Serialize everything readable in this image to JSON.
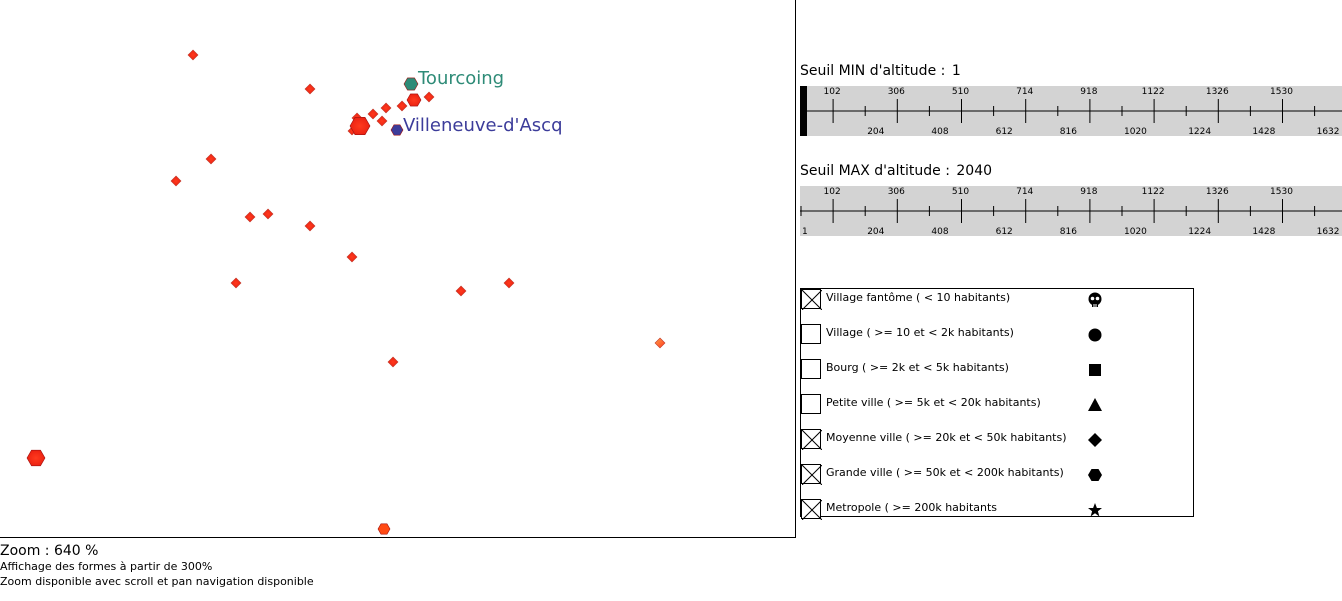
{
  "map": {
    "city_labels": [
      {
        "id": "tourcoing",
        "name": "Tourcoing",
        "color": "#2e8b77"
      },
      {
        "id": "villeneuve",
        "name": "Villeneuve-d'Ascq",
        "color": "#3c3c9a"
      }
    ],
    "marker_fill": "#ff2a14",
    "marker_stroke": "#b22222",
    "orange_marker_fill": "#ff6a2a"
  },
  "zoom": {
    "label": "Zoom : 640 %",
    "shapes_note": "Affichage des formes à partir de 300%",
    "navigation_note": "Zoom disponible avec scroll et pan navigation disponible"
  },
  "slider_min": {
    "label": "Seuil MIN d'altitude :",
    "value": "1",
    "top_ticks": [
      "102",
      "306",
      "510",
      "714",
      "918",
      "1122",
      "1326",
      "1530"
    ],
    "bottom_ticks": [
      "204",
      "408",
      "612",
      "816",
      "1020",
      "1224",
      "1428",
      "1632"
    ]
  },
  "slider_max": {
    "label": "Seuil MAX d'altitude :",
    "value": "2040",
    "top_ticks": [
      "102",
      "306",
      "510",
      "714",
      "918",
      "1122",
      "1326",
      "1530"
    ],
    "bottom_ticks": [
      "1",
      "204",
      "408",
      "612",
      "816",
      "1020",
      "1224",
      "1428",
      "1632"
    ]
  },
  "legend": {
    "items": [
      {
        "label": "Village fantôme ( < 10 habitants)",
        "checked": true,
        "icon": "skull-icon"
      },
      {
        "label": "Village ( >= 10 et < 2k habitants)",
        "checked": false,
        "icon": "circle-icon"
      },
      {
        "label": "Bourg ( >= 2k et < 5k habitants)",
        "checked": false,
        "icon": "square-icon"
      },
      {
        "label": "Petite ville ( >= 5k et < 20k habitants)",
        "checked": false,
        "icon": "triangle-icon"
      },
      {
        "label": "Moyenne ville ( >= 20k et < 50k habitants)",
        "checked": true,
        "icon": "diamond-icon"
      },
      {
        "label": "Grande ville ( >= 50k et < 200k habitants)",
        "checked": true,
        "icon": "hexagon-icon"
      },
      {
        "label": "Metropole ( >= 200k habitants",
        "checked": true,
        "icon": "star-icon"
      }
    ]
  }
}
